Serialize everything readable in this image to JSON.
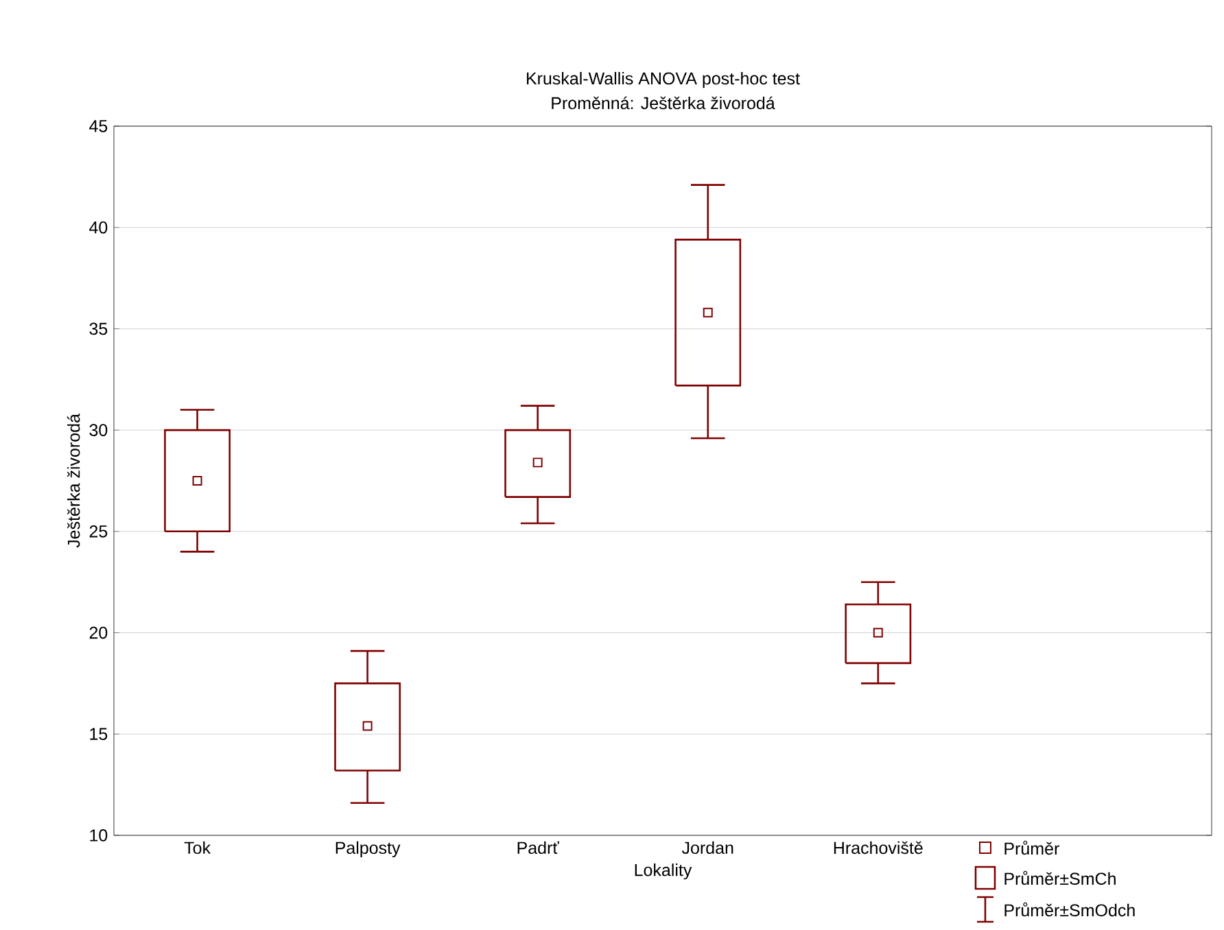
{
  "chart_data": {
    "type": "box",
    "title": "Kruskal-Wallis ANOVA post-hoc test",
    "subtitle": "Proměnná: Ještěrka živorodá",
    "xlabel": "Lokality",
    "ylabel": "Ještěrka živorodá",
    "categories": [
      "Tok",
      "Palposty",
      "Padrť",
      "Jordan",
      "Hrachoviště"
    ],
    "boxes": [
      {
        "low": 24.0,
        "q1": 25.0,
        "q3": 30.0,
        "high": 31.0,
        "mean": 27.5
      },
      {
        "low": 11.6,
        "q1": 13.2,
        "q3": 17.5,
        "high": 19.1,
        "mean": 15.4
      },
      {
        "low": 25.4,
        "q1": 26.7,
        "q3": 30.0,
        "high": 31.2,
        "mean": 28.4
      },
      {
        "low": 29.6,
        "q1": 32.2,
        "q3": 39.4,
        "high": 42.1,
        "mean": 35.8
      },
      {
        "low": 17.5,
        "q1": 18.5,
        "q3": 21.4,
        "high": 22.5,
        "mean": 20.0
      }
    ],
    "color": "#800000",
    "ylim": [
      10,
      45
    ],
    "yticks": [
      10,
      15,
      20,
      25,
      30,
      35,
      40,
      45
    ],
    "grid": "y",
    "marker": "square",
    "annotations": [
      "Průměr",
      "Průměr±SmCh",
      "Průměr±SmOdch"
    ]
  }
}
